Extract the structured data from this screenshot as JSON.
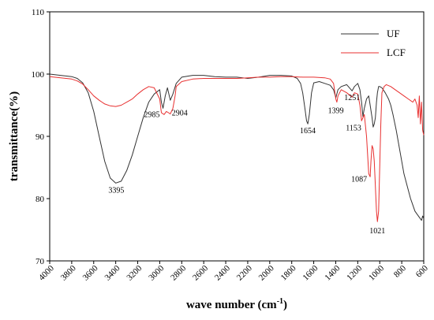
{
  "chart_data": {
    "type": "line",
    "title": "",
    "xlabel": "wave number (cm",
    "xlabel_sup": "-1",
    "xlabel_suffix": ")",
    "ylabel": "transmittance(%)",
    "xlim": [
      4000,
      600
    ],
    "ylim": [
      70,
      110
    ],
    "x_ticks": [
      "4000",
      "3800",
      "3600",
      "3400",
      "3200",
      "3000",
      "2800",
      "2600",
      "2400",
      "2200",
      "2000",
      "1800",
      "1600",
      "1400",
      "1200",
      "1000",
      "800",
      "600"
    ],
    "y_ticks": [
      "70",
      "80",
      "90",
      "100",
      "110"
    ],
    "grid": false,
    "legend": "top-right",
    "series": [
      {
        "name": "UF",
        "color": "#333333",
        "points": [
          [
            4000,
            100.0
          ],
          [
            3900,
            99.8
          ],
          [
            3800,
            99.6
          ],
          [
            3750,
            99.3
          ],
          [
            3700,
            98.6
          ],
          [
            3650,
            97.0
          ],
          [
            3600,
            94.0
          ],
          [
            3550,
            90.0
          ],
          [
            3500,
            86.0
          ],
          [
            3450,
            83.3
          ],
          [
            3400,
            82.5
          ],
          [
            3350,
            82.8
          ],
          [
            3300,
            84.5
          ],
          [
            3250,
            87.0
          ],
          [
            3200,
            90.0
          ],
          [
            3150,
            93.0
          ],
          [
            3100,
            95.5
          ],
          [
            3050,
            96.8
          ],
          [
            3000,
            97.5
          ],
          [
            2985,
            95.5
          ],
          [
            2970,
            94.5
          ],
          [
            2950,
            96.5
          ],
          [
            2930,
            97.8
          ],
          [
            2904,
            95.8
          ],
          [
            2880,
            96.8
          ],
          [
            2850,
            98.5
          ],
          [
            2800,
            99.5
          ],
          [
            2700,
            99.8
          ],
          [
            2600,
            99.8
          ],
          [
            2500,
            99.6
          ],
          [
            2400,
            99.5
          ],
          [
            2300,
            99.5
          ],
          [
            2200,
            99.3
          ],
          [
            2100,
            99.5
          ],
          [
            2000,
            99.8
          ],
          [
            1900,
            99.8
          ],
          [
            1800,
            99.7
          ],
          [
            1750,
            99.3
          ],
          [
            1720,
            98.5
          ],
          [
            1700,
            97.0
          ],
          [
            1680,
            94.5
          ],
          [
            1665,
            92.5
          ],
          [
            1654,
            92.0
          ],
          [
            1640,
            93.5
          ],
          [
            1620,
            97.0
          ],
          [
            1600,
            98.6
          ],
          [
            1550,
            98.8
          ],
          [
            1500,
            98.5
          ],
          [
            1450,
            98.2
          ],
          [
            1420,
            97.5
          ],
          [
            1399,
            96.2
          ],
          [
            1380,
            97.5
          ],
          [
            1350,
            98.0
          ],
          [
            1300,
            98.3
          ],
          [
            1251,
            97.3
          ],
          [
            1230,
            98.0
          ],
          [
            1200,
            98.5
          ],
          [
            1180,
            97.5
          ],
          [
            1165,
            95.5
          ],
          [
            1153,
            93.2
          ],
          [
            1140,
            94.5
          ],
          [
            1120,
            96.0
          ],
          [
            1100,
            96.5
          ],
          [
            1087,
            95.0
          ],
          [
            1070,
            93.0
          ],
          [
            1060,
            91.5
          ],
          [
            1050,
            92.0
          ],
          [
            1040,
            93.0
          ],
          [
            1030,
            95.5
          ],
          [
            1021,
            97.0
          ],
          [
            1010,
            98.0
          ],
          [
            1000,
            98.0
          ],
          [
            980,
            97.8
          ],
          [
            950,
            97.0
          ],
          [
            920,
            96.0
          ],
          [
            900,
            95.0
          ],
          [
            880,
            93.5
          ],
          [
            850,
            91.0
          ],
          [
            820,
            88.0
          ],
          [
            800,
            86.0
          ],
          [
            780,
            84.0
          ],
          [
            750,
            82.0
          ],
          [
            720,
            80.0
          ],
          [
            700,
            79.0
          ],
          [
            680,
            78.0
          ],
          [
            660,
            77.5
          ],
          [
            640,
            77.0
          ],
          [
            620,
            76.5
          ],
          [
            610,
            77.2
          ],
          [
            600,
            76.8
          ]
        ]
      },
      {
        "name": "LCF",
        "color": "#e83030",
        "points": [
          [
            4000,
            99.6
          ],
          [
            3900,
            99.4
          ],
          [
            3800,
            99.2
          ],
          [
            3750,
            98.9
          ],
          [
            3700,
            98.4
          ],
          [
            3650,
            97.5
          ],
          [
            3600,
            96.5
          ],
          [
            3550,
            95.8
          ],
          [
            3500,
            95.2
          ],
          [
            3450,
            94.9
          ],
          [
            3400,
            94.8
          ],
          [
            3350,
            95.0
          ],
          [
            3300,
            95.5
          ],
          [
            3250,
            96.0
          ],
          [
            3200,
            96.8
          ],
          [
            3150,
            97.5
          ],
          [
            3100,
            98.0
          ],
          [
            3050,
            97.8
          ],
          [
            3000,
            96.0
          ],
          [
            2985,
            93.8
          ],
          [
            2960,
            93.5
          ],
          [
            2940,
            94.0
          ],
          [
            2920,
            93.8
          ],
          [
            2904,
            93.6
          ],
          [
            2880,
            94.5
          ],
          [
            2860,
            96.5
          ],
          [
            2850,
            98.0
          ],
          [
            2800,
            98.8
          ],
          [
            2700,
            99.2
          ],
          [
            2600,
            99.3
          ],
          [
            2500,
            99.3
          ],
          [
            2400,
            99.3
          ],
          [
            2300,
            99.3
          ],
          [
            2200,
            99.4
          ],
          [
            2100,
            99.5
          ],
          [
            2000,
            99.5
          ],
          [
            1900,
            99.6
          ],
          [
            1800,
            99.6
          ],
          [
            1700,
            99.5
          ],
          [
            1600,
            99.5
          ],
          [
            1500,
            99.4
          ],
          [
            1450,
            99.2
          ],
          [
            1420,
            98.5
          ],
          [
            1399,
            96.0
          ],
          [
            1390,
            95.5
          ],
          [
            1380,
            96.5
          ],
          [
            1350,
            97.5
          ],
          [
            1300,
            97.0
          ],
          [
            1251,
            96.3
          ],
          [
            1230,
            97.0
          ],
          [
            1200,
            96.8
          ],
          [
            1180,
            95.0
          ],
          [
            1165,
            92.5
          ],
          [
            1153,
            93.0
          ],
          [
            1140,
            93.5
          ],
          [
            1120,
            90.0
          ],
          [
            1110,
            87.0
          ],
          [
            1100,
            84.0
          ],
          [
            1087,
            83.5
          ],
          [
            1080,
            86.0
          ],
          [
            1070,
            88.5
          ],
          [
            1060,
            88.0
          ],
          [
            1050,
            86.0
          ],
          [
            1040,
            82.0
          ],
          [
            1030,
            78.0
          ],
          [
            1021,
            76.3
          ],
          [
            1010,
            78.0
          ],
          [
            1000,
            85.0
          ],
          [
            990,
            92.0
          ],
          [
            980,
            97.0
          ],
          [
            960,
            98.0
          ],
          [
            940,
            98.3
          ],
          [
            900,
            98.0
          ],
          [
            860,
            97.5
          ],
          [
            820,
            97.0
          ],
          [
            780,
            96.5
          ],
          [
            740,
            96.0
          ],
          [
            700,
            95.5
          ],
          [
            680,
            96.0
          ],
          [
            660,
            95.0
          ],
          [
            650,
            93.0
          ],
          [
            640,
            96.5
          ],
          [
            630,
            92.0
          ],
          [
            620,
            95.5
          ],
          [
            610,
            91.0
          ],
          [
            600,
            90.2
          ]
        ]
      }
    ],
    "annotations": [
      {
        "text": "3395",
        "x": 3395,
        "y": 82.5,
        "dy": 12,
        "anchor": "middle"
      },
      {
        "text": "2985",
        "x": 2985,
        "y": 94.5,
        "dy": 11,
        "dx": -2,
        "anchor": "end"
      },
      {
        "text": "2904",
        "x": 2904,
        "y": 93.6,
        "dy": 2,
        "dx": 2,
        "anchor": "start"
      },
      {
        "text": "1654",
        "x": 1654,
        "y": 92.0,
        "dy": 12,
        "anchor": "middle"
      },
      {
        "text": "1399",
        "x": 1399,
        "y": 95.5,
        "dy": 14,
        "anchor": "middle"
      },
      {
        "text": "1251",
        "x": 1251,
        "y": 96.3,
        "dy": 4,
        "anchor": "middle"
      },
      {
        "text": "1153",
        "x": 1153,
        "y": 92.5,
        "dy": 12,
        "dx": -2,
        "anchor": "end"
      },
      {
        "text": "1087",
        "x": 1087,
        "y": 83.5,
        "dy": 6,
        "dx": -4,
        "anchor": "end"
      },
      {
        "text": "1021",
        "x": 1021,
        "y": 76.3,
        "dy": 15,
        "anchor": "middle"
      }
    ]
  }
}
